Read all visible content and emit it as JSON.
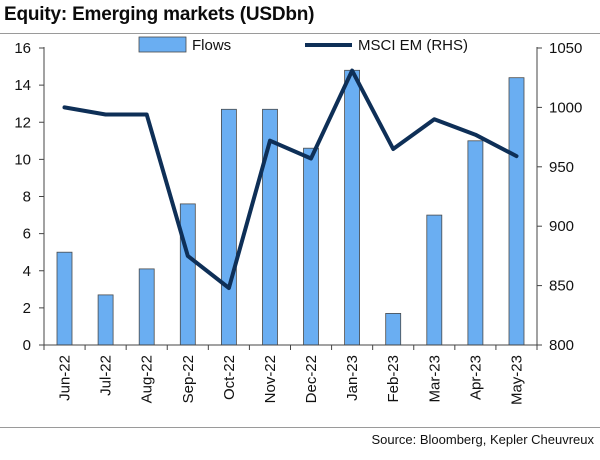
{
  "header": {
    "title": "Equity: Emerging markets (USDbn)"
  },
  "footer": {
    "source": "Source: Bloomberg, Kepler Cheuvreux"
  },
  "colors": {
    "bar_fill": "#6aaef2",
    "bar_edge": "#4a4a4a",
    "line": "#0e2f57",
    "axis": "#444444"
  },
  "chart_data": {
    "type": "bar+line",
    "title": "Equity: Emerging markets (USDbn)",
    "categories": [
      "Jun-22",
      "Jul-22",
      "Aug-22",
      "Sep-22",
      "Oct-22",
      "Nov-22",
      "Dec-22",
      "Jan-23",
      "Feb-23",
      "Mar-23",
      "Apr-23",
      "May-23"
    ],
    "series": [
      {
        "name": "Flows",
        "type": "bar",
        "axis": "left",
        "values": [
          5.0,
          2.7,
          4.1,
          7.6,
          12.7,
          12.7,
          10.6,
          14.8,
          1.7,
          7.0,
          11.0,
          14.4
        ]
      },
      {
        "name": "MSCI EM (RHS)",
        "type": "line",
        "axis": "right",
        "values": [
          1000,
          994,
          994,
          875,
          848,
          972,
          957,
          1031,
          965,
          990,
          977,
          959
        ]
      }
    ],
    "left_axis": {
      "min": 0,
      "max": 16,
      "ticks": [
        "0",
        "2",
        "4",
        "6",
        "8",
        "10",
        "12",
        "14",
        "16"
      ]
    },
    "right_axis": {
      "min": 800,
      "max": 1050,
      "ticks": [
        "800",
        "850",
        "900",
        "950",
        "1000",
        "1050"
      ]
    },
    "legend": {
      "position": "top-center",
      "entries": [
        "Flows",
        "MSCI EM (RHS)"
      ]
    },
    "grid": false
  }
}
